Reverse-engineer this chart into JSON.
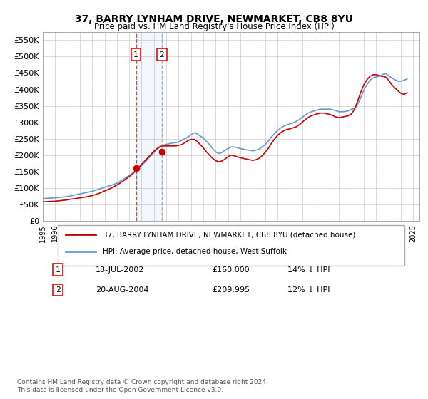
{
  "title": "37, BARRY LYNHAM DRIVE, NEWMARKET, CB8 8YU",
  "subtitle": "Price paid vs. HM Land Registry's House Price Index (HPI)",
  "legend_line1": "37, BARRY LYNHAM DRIVE, NEWMARKET, CB8 8YU (detached house)",
  "legend_line2": "HPI: Average price, detached house, West Suffolk",
  "footer": "Contains HM Land Registry data © Crown copyright and database right 2024.\nThis data is licensed under the Open Government Licence v3.0.",
  "sale1_label": "1",
  "sale1_date": "18-JUL-2002",
  "sale1_price": "£160,000",
  "sale1_hpi": "14% ↓ HPI",
  "sale2_label": "2",
  "sale2_date": "20-AUG-2004",
  "sale2_price": "£209,995",
  "sale2_hpi": "12% ↓ HPI",
  "sale1_x": 2002.54,
  "sale1_y": 160000,
  "sale2_x": 2004.64,
  "sale2_y": 209995,
  "hpi_color": "#6699cc",
  "price_color": "#cc0000",
  "background_color": "#ffffff",
  "grid_color": "#cccccc",
  "ylim": [
    0,
    575000
  ],
  "xlim": [
    1995,
    2025.5
  ],
  "yticks": [
    0,
    50000,
    100000,
    150000,
    200000,
    250000,
    300000,
    350000,
    400000,
    450000,
    500000,
    550000
  ],
  "ytick_labels": [
    "£0",
    "£50K",
    "£100K",
    "£150K",
    "£200K",
    "£250K",
    "£300K",
    "£350K",
    "£400K",
    "£450K",
    "£500K",
    "£550K"
  ],
  "hpi_data_x": [
    1995,
    1995.25,
    1995.5,
    1995.75,
    1996,
    1996.25,
    1996.5,
    1996.75,
    1997,
    1997.25,
    1997.5,
    1997.75,
    1998,
    1998.25,
    1998.5,
    1998.75,
    1999,
    1999.25,
    1999.5,
    1999.75,
    2000,
    2000.25,
    2000.5,
    2000.75,
    2001,
    2001.25,
    2001.5,
    2001.75,
    2002,
    2002.25,
    2002.5,
    2002.75,
    2003,
    2003.25,
    2003.5,
    2003.75,
    2004,
    2004.25,
    2004.5,
    2004.75,
    2005,
    2005.25,
    2005.5,
    2005.75,
    2006,
    2006.25,
    2006.5,
    2006.75,
    2007,
    2007.25,
    2007.5,
    2007.75,
    2008,
    2008.25,
    2008.5,
    2008.75,
    2009,
    2009.25,
    2009.5,
    2009.75,
    2010,
    2010.25,
    2010.5,
    2010.75,
    2011,
    2011.25,
    2011.5,
    2011.75,
    2012,
    2012.25,
    2012.5,
    2012.75,
    2013,
    2013.25,
    2013.5,
    2013.75,
    2014,
    2014.25,
    2014.5,
    2014.75,
    2015,
    2015.25,
    2015.5,
    2015.75,
    2016,
    2016.25,
    2016.5,
    2016.75,
    2017,
    2017.25,
    2017.5,
    2017.75,
    2018,
    2018.25,
    2018.5,
    2018.75,
    2019,
    2019.25,
    2019.5,
    2019.75,
    2020,
    2020.25,
    2020.5,
    2020.75,
    2021,
    2021.25,
    2021.5,
    2021.75,
    2022,
    2022.25,
    2022.5,
    2022.75,
    2023,
    2023.25,
    2023.5,
    2023.75,
    2024,
    2024.25,
    2024.5
  ],
  "hpi_data_y": [
    68000,
    68500,
    69000,
    69500,
    70000,
    71000,
    72000,
    73000,
    74000,
    76000,
    78000,
    80000,
    82000,
    84000,
    86000,
    88000,
    90000,
    93000,
    96000,
    99000,
    102000,
    105000,
    108000,
    111000,
    115000,
    120000,
    126000,
    132000,
    138000,
    145000,
    152000,
    160000,
    168000,
    178000,
    188000,
    198000,
    208000,
    218000,
    225000,
    230000,
    233000,
    235000,
    237000,
    238000,
    240000,
    245000,
    250000,
    255000,
    262000,
    268000,
    265000,
    258000,
    252000,
    242000,
    232000,
    220000,
    210000,
    205000,
    208000,
    215000,
    220000,
    225000,
    225000,
    223000,
    220000,
    218000,
    216000,
    215000,
    213000,
    215000,
    218000,
    225000,
    232000,
    242000,
    255000,
    265000,
    275000,
    282000,
    288000,
    292000,
    295000,
    298000,
    302000,
    308000,
    315000,
    322000,
    328000,
    332000,
    335000,
    338000,
    340000,
    340000,
    340000,
    340000,
    338000,
    335000,
    332000,
    332000,
    333000,
    335000,
    340000,
    342000,
    355000,
    375000,
    398000,
    415000,
    428000,
    435000,
    438000,
    440000,
    445000,
    448000,
    442000,
    435000,
    430000,
    425000,
    425000,
    428000,
    432000
  ],
  "price_data_x": [
    1995,
    1995.25,
    1995.5,
    1995.75,
    1996,
    1996.25,
    1996.5,
    1996.75,
    1997,
    1997.25,
    1997.5,
    1997.75,
    1998,
    1998.25,
    1998.5,
    1998.75,
    1999,
    1999.25,
    1999.5,
    1999.75,
    2000,
    2000.25,
    2000.5,
    2000.75,
    2001,
    2001.25,
    2001.5,
    2001.75,
    2002,
    2002.25,
    2002.5,
    2002.75,
    2003,
    2003.25,
    2003.5,
    2003.75,
    2004,
    2004.25,
    2004.5,
    2004.75,
    2005,
    2005.25,
    2005.5,
    2005.75,
    2006,
    2006.25,
    2006.5,
    2006.75,
    2007,
    2007.25,
    2007.5,
    2007.75,
    2008,
    2008.25,
    2008.5,
    2008.75,
    2009,
    2009.25,
    2009.5,
    2009.75,
    2010,
    2010.25,
    2010.5,
    2010.75,
    2011,
    2011.25,
    2011.5,
    2011.75,
    2012,
    2012.25,
    2012.5,
    2012.75,
    2013,
    2013.25,
    2013.5,
    2013.75,
    2014,
    2014.25,
    2014.5,
    2014.75,
    2015,
    2015.25,
    2015.5,
    2015.75,
    2016,
    2016.25,
    2016.5,
    2016.75,
    2017,
    2017.25,
    2017.5,
    2017.75,
    2018,
    2018.25,
    2018.5,
    2018.75,
    2019,
    2019.25,
    2019.5,
    2019.75,
    2020,
    2020.25,
    2020.5,
    2020.75,
    2021,
    2021.25,
    2021.5,
    2021.75,
    2022,
    2022.25,
    2022.5,
    2022.75,
    2023,
    2023.25,
    2023.5,
    2023.75,
    2024,
    2024.25,
    2024.5
  ],
  "price_data_y": [
    58000,
    58500,
    59000,
    59500,
    60000,
    61000,
    62000,
    63000,
    64000,
    66000,
    67000,
    68500,
    70000,
    71500,
    73000,
    75000,
    77000,
    80000,
    83000,
    87000,
    91000,
    95000,
    99000,
    104000,
    109000,
    115000,
    121000,
    128000,
    135000,
    142000,
    152000,
    162000,
    172000,
    182000,
    192000,
    202000,
    212000,
    220000,
    226000,
    228000,
    228000,
    228000,
    228000,
    228000,
    230000,
    232000,
    238000,
    244000,
    248000,
    248000,
    242000,
    232000,
    222000,
    210000,
    200000,
    190000,
    183000,
    180000,
    182000,
    188000,
    195000,
    200000,
    198000,
    195000,
    192000,
    190000,
    188000,
    186000,
    184000,
    186000,
    190000,
    198000,
    208000,
    220000,
    235000,
    248000,
    260000,
    268000,
    274000,
    278000,
    280000,
    283000,
    286000,
    292000,
    300000,
    308000,
    315000,
    320000,
    323000,
    326000,
    328000,
    328000,
    326000,
    324000,
    320000,
    316000,
    314000,
    316000,
    318000,
    320000,
    326000,
    340000,
    365000,
    392000,
    415000,
    430000,
    440000,
    445000,
    445000,
    442000,
    440000,
    438000,
    428000,
    415000,
    405000,
    396000,
    388000,
    385000,
    390000
  ]
}
